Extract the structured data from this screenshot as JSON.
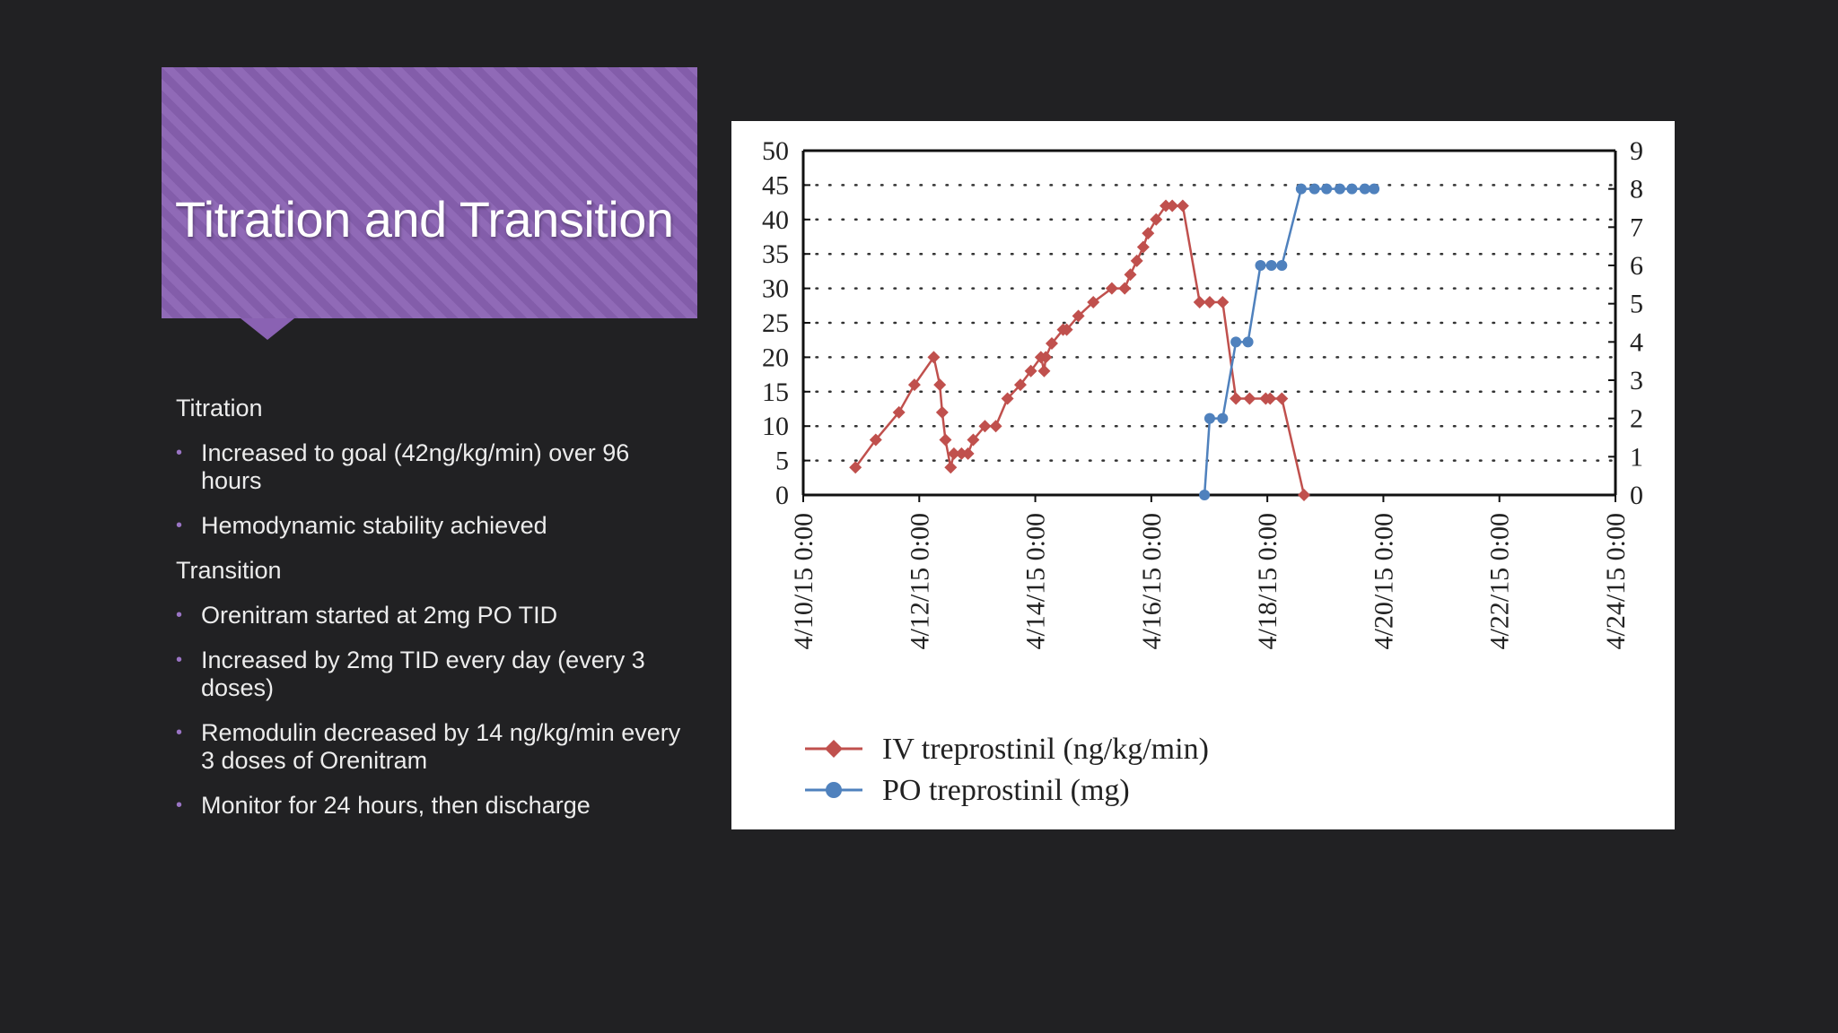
{
  "slide": {
    "title": "Titration and Transition",
    "accent_color": "#8a62b3"
  },
  "body": {
    "sections": [
      {
        "heading": "Titration",
        "bullets": [
          "Increased to goal (42ng/kg/min) over 96 hours",
          "Hemodynamic stability achieved"
        ]
      },
      {
        "heading": "Transition",
        "bullets": [
          "Orenitram started at 2mg PO TID",
          "Increased by 2mg TID every day (every 3 doses)",
          "Remodulin decreased  by 14 ng/kg/min every 3 doses of Orenitram",
          "Monitor for 24 hours, then discharge"
        ]
      }
    ]
  },
  "chart_data": {
    "type": "line",
    "x_tick_labels": [
      "4/10/15 0:00",
      "4/12/15 0:00",
      "4/14/15 0:00",
      "4/16/15 0:00",
      "4/18/15 0:00",
      "4/20/15 0:00",
      "4/22/15 0:00",
      "4/24/15 0:00"
    ],
    "xlim": [
      "4/10/15 0:00",
      "4/24/15 0:00"
    ],
    "y_left_ticks": [
      0,
      5,
      10,
      15,
      20,
      25,
      30,
      35,
      40,
      45,
      50
    ],
    "ylim_left": [
      0,
      50
    ],
    "y_right_ticks": [
      0,
      1,
      2,
      3,
      4,
      5,
      6,
      7,
      8,
      9
    ],
    "ylim_right": [
      0,
      9
    ],
    "grid": "horizontal dotted",
    "legend_position": "bottom-left",
    "series": [
      {
        "name": "IV treprostinil (ng/kg/min)",
        "axis": "left",
        "color": "#c0504d",
        "marker": "diamond",
        "points": [
          [
            "4/10/15 21:36",
            4
          ],
          [
            "4/11/15 6:00",
            8
          ],
          [
            "4/11/15 15:36",
            12
          ],
          [
            "4/11/15 22:00",
            16
          ],
          [
            "4/12/15 6:00",
            20
          ],
          [
            "4/12/15 8:30",
            16
          ],
          [
            "4/12/15 9:30",
            12
          ],
          [
            "4/12/15 10:50",
            8
          ],
          [
            "4/12/15 13:00",
            4
          ],
          [
            "4/12/15 14:20",
            6
          ],
          [
            "4/12/15 17:30",
            6
          ],
          [
            "4/12/15 20:10",
            6
          ],
          [
            "4/12/15 22:20",
            8
          ],
          [
            "4/13/15 3:10",
            10
          ],
          [
            "4/13/15 7:40",
            10
          ],
          [
            "4/13/15 12:30",
            14
          ],
          [
            "4/13/15 17:50",
            16
          ],
          [
            "4/13/15 22:10",
            18
          ],
          [
            "4/14/15 2:20",
            20
          ],
          [
            "4/14/15 3:40",
            18
          ],
          [
            "4/14/15 4:20",
            20
          ],
          [
            "4/14/15 6:50",
            22
          ],
          [
            "4/14/15 11:30",
            24
          ],
          [
            "4/14/15 13:00",
            24
          ],
          [
            "4/14/15 17:50",
            26
          ],
          [
            "4/15/15 0:00",
            28
          ],
          [
            "4/15/15 7:40",
            30
          ],
          [
            "4/15/15 13:00",
            30
          ],
          [
            "4/15/15 15:20",
            32
          ],
          [
            "4/15/15 18:00",
            34
          ],
          [
            "4/15/15 20:40",
            36
          ],
          [
            "4/15/15 22:40",
            38
          ],
          [
            "4/16/15 2:00",
            40
          ],
          [
            "4/16/15 6:00",
            42
          ],
          [
            "4/16/15 8:40",
            42
          ],
          [
            "4/16/15 13:00",
            42
          ],
          [
            "4/16/15 20:00",
            28
          ],
          [
            "4/17/15 0:10",
            28
          ],
          [
            "4/17/15 5:30",
            28
          ],
          [
            "4/17/15 11:00",
            14
          ],
          [
            "4/17/15 16:40",
            14
          ],
          [
            "4/17/15 23:20",
            14
          ],
          [
            "4/18/15 1:10",
            14
          ],
          [
            "4/18/15 6:00",
            14
          ],
          [
            "4/18/15 15:10",
            0
          ]
        ]
      },
      {
        "name": "PO treprostinil (mg)",
        "axis": "right",
        "color": "#4f81bd",
        "marker": "circle",
        "points": [
          [
            "4/16/15 22:00",
            0
          ],
          [
            "4/17/15 0:10",
            2
          ],
          [
            "4/17/15 5:30",
            2
          ],
          [
            "4/17/15 11:00",
            4
          ],
          [
            "4/17/15 16:00",
            4
          ],
          [
            "4/17/15 21:10",
            6
          ],
          [
            "4/18/15 1:40",
            6
          ],
          [
            "4/18/15 6:00",
            6
          ],
          [
            "4/18/15 14:00",
            8
          ],
          [
            "4/18/15 19:30",
            8
          ],
          [
            "4/19/15 0:30",
            8
          ],
          [
            "4/19/15 6:00",
            8
          ],
          [
            "4/19/15 11:00",
            8
          ],
          [
            "4/19/15 16:20",
            8
          ],
          [
            "4/19/15 20:10",
            8
          ]
        ]
      }
    ]
  }
}
